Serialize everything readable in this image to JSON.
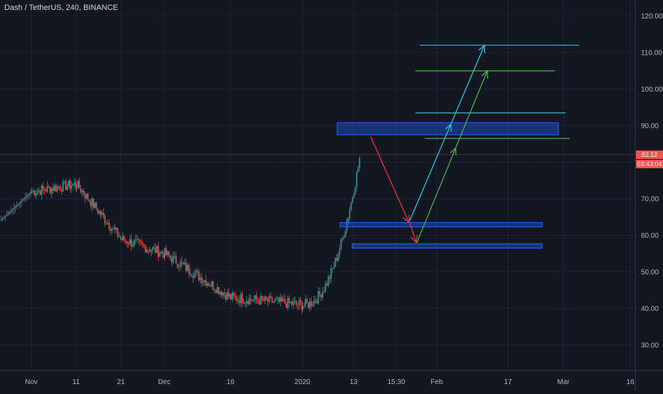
{
  "header": {
    "title": "Dash / TetherUS, 240, BINANCE"
  },
  "chart_data": {
    "type": "candlestick",
    "title": "Dash / TetherUS, 240, BINANCE",
    "yaxis": {
      "ticks": [
        "120.00",
        "110.00",
        "100.00",
        "90.00",
        "80.00",
        "70.00",
        "60.00",
        "50.00",
        "40.00",
        "30.00"
      ],
      "range": [
        22,
        124
      ]
    },
    "xaxis": {
      "ticks": [
        "Nov",
        "11",
        "21",
        "Dec",
        "16",
        "2020",
        "13",
        "15:30",
        "Feb",
        "17",
        "Mar",
        "16"
      ]
    },
    "price_path": [
      {
        "label": "Nov",
        "value": 72
      },
      {
        "label": "11",
        "value": 74
      },
      {
        "label": "21",
        "value": 59
      },
      {
        "label": "Dec",
        "value": 55
      },
      {
        "label": "16",
        "value": 43
      },
      {
        "label": "2020",
        "value": 41
      },
      {
        "label": "13",
        "value": 82
      }
    ],
    "last_price": "82.12",
    "countdown": "03:43:04",
    "zones": [
      {
        "name": "resistance-zone",
        "from": 87.5,
        "to": 90.8
      },
      {
        "name": "support-zone-upper",
        "from": 62.3,
        "to": 63.5
      },
      {
        "name": "support-zone-lower",
        "from": 56.5,
        "to": 57.7
      }
    ],
    "levels": [
      {
        "name": "target-line-1",
        "value": 112,
        "color": "#26c6da"
      },
      {
        "name": "target-line-2",
        "value": 105,
        "color": "#4caf50"
      },
      {
        "name": "target-line-3",
        "value": 93.5,
        "color": "#26c6da"
      },
      {
        "name": "target-line-4",
        "value": 86.5,
        "color": "#4caf50"
      }
    ],
    "projections": [
      {
        "name": "drop-arrow-to-upper-support",
        "from_value": 87,
        "to_value": 63.5,
        "color": "#e53935"
      },
      {
        "name": "drop-arrow-to-lower-support",
        "from_value": 63.5,
        "to_value": 58,
        "color": "#e53935"
      },
      {
        "name": "rise-arrow-cyan",
        "from_value": 64,
        "to_value": 112,
        "color": "#26c6da"
      },
      {
        "name": "rise-arrow-green",
        "from_value": 58,
        "to_value": 105,
        "color": "#4caf50"
      }
    ],
    "colors": {
      "up": "#26a69a",
      "down": "#ef5350",
      "background": "#131722",
      "zone": "#1e56d8"
    }
  }
}
